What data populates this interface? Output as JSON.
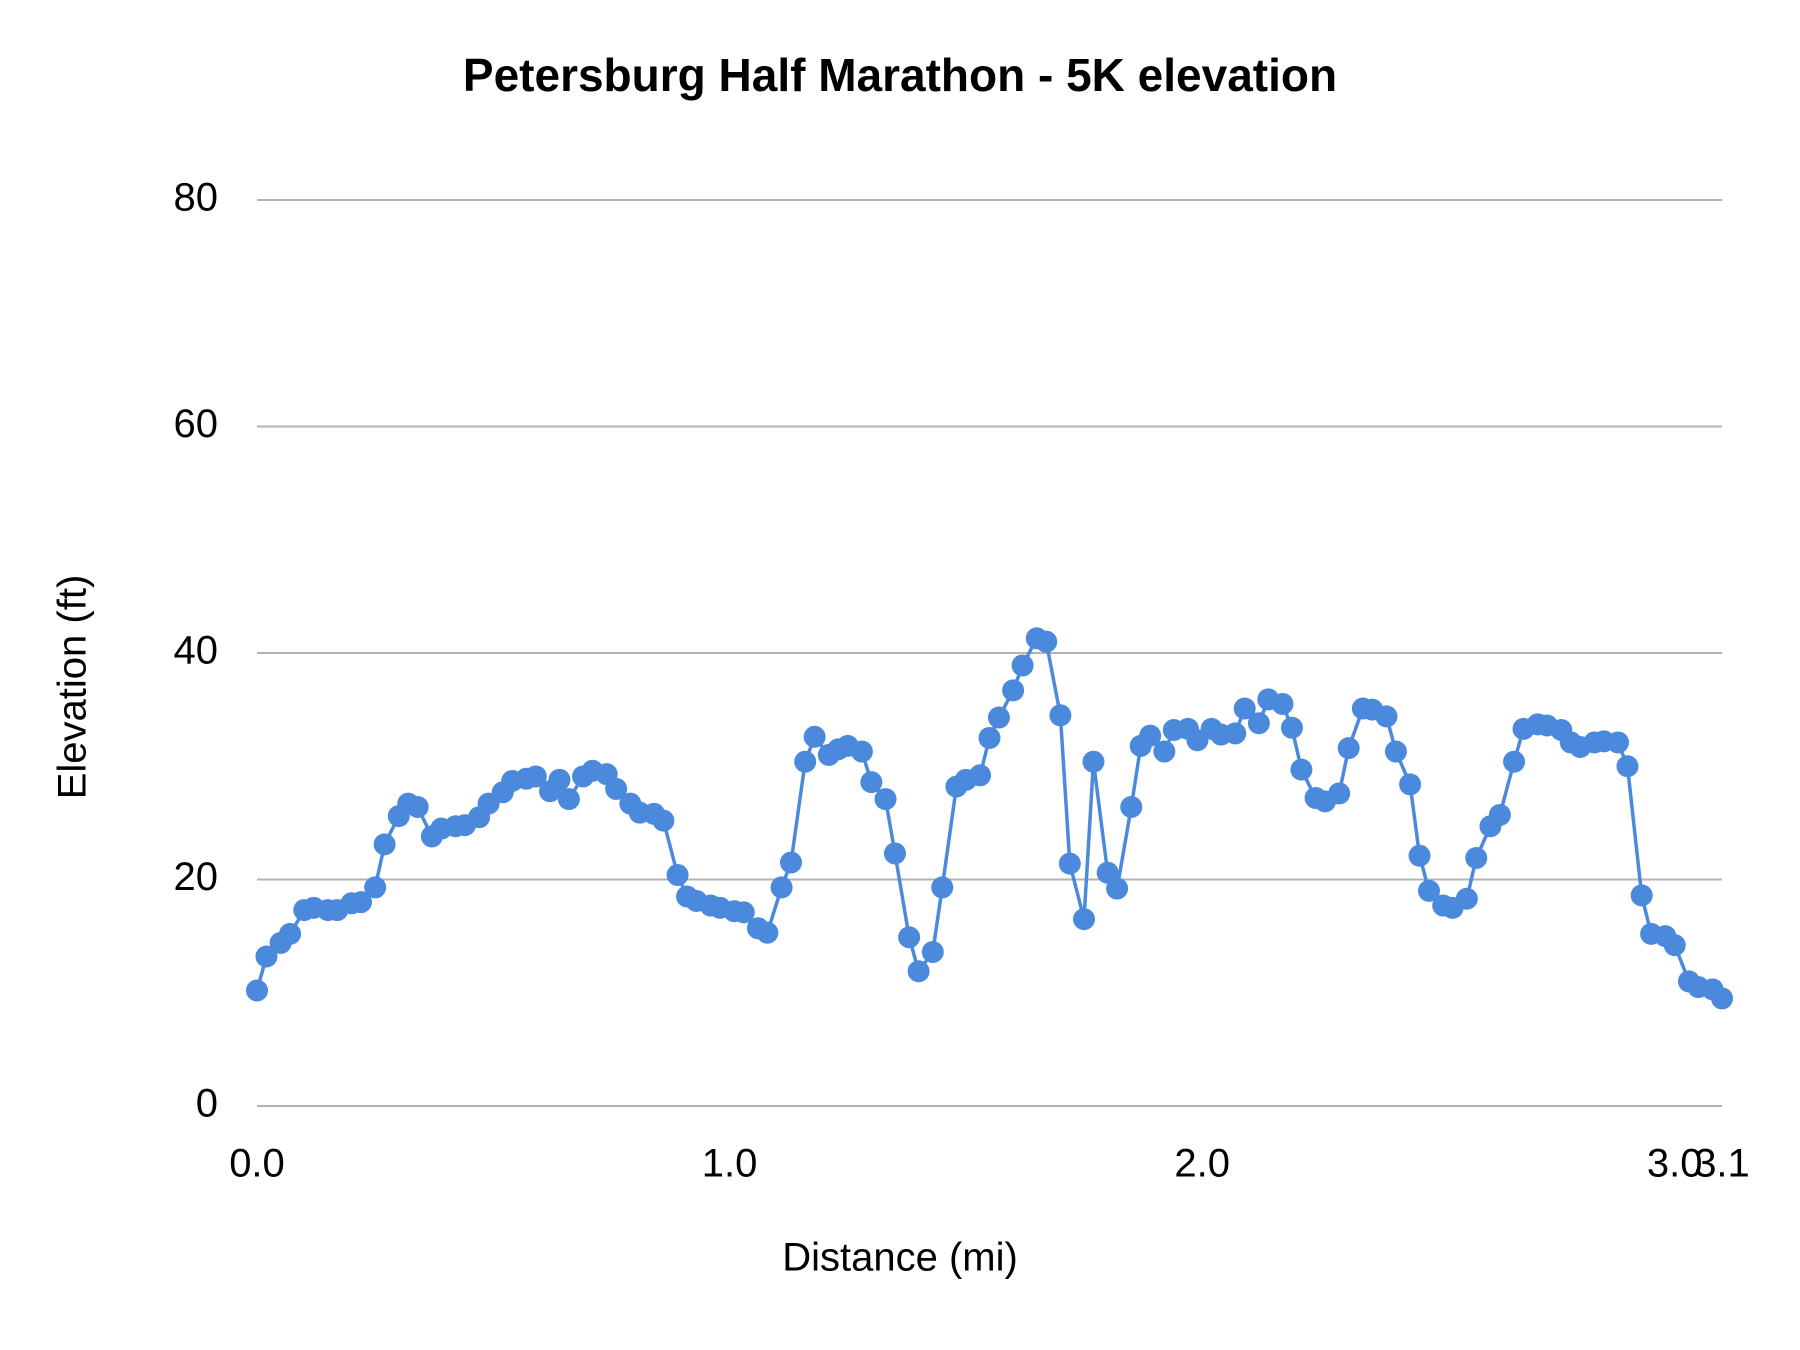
{
  "chart_data": {
    "type": "line",
    "title": "Petersburg Half Marathon  - 5K elevation",
    "x_label": "Distance (mi)",
    "y_label": "Elevation (ft)",
    "color": "#4a89dc",
    "grid": true,
    "xlim": [
      0,
      3.1
    ],
    "ylim": [
      0,
      80
    ],
    "xticks": [
      {
        "value": 0,
        "label": "0.0"
      },
      {
        "value": 1,
        "label": "1.0"
      },
      {
        "value": 2,
        "label": "2.0"
      },
      {
        "value": 3,
        "label": "3.0"
      },
      3.1
    ],
    "yticks": [
      0,
      20,
      40,
      60,
      80
    ],
    "x": [
      0,
      0.02,
      0.05,
      0.07,
      0.1,
      0.12,
      0.15,
      0.17,
      0.2,
      0.22,
      0.25,
      0.27,
      0.3,
      0.32,
      0.34,
      0.37,
      0.39,
      0.42,
      0.44,
      0.47,
      0.49,
      0.52,
      0.54,
      0.57,
      0.59,
      0.62,
      0.64,
      0.66,
      0.69,
      0.71,
      0.74,
      0.76,
      0.79,
      0.81,
      0.84,
      0.86,
      0.89,
      0.91,
      0.93,
      0.96,
      0.98,
      1.01,
      1.03,
      1.06,
      1.08,
      1.11,
      1.13,
      1.16,
      1.18,
      1.21,
      1.23,
      1.25,
      1.28,
      1.3,
      1.33,
      1.35,
      1.38,
      1.4,
      1.43,
      1.45,
      1.48,
      1.5,
      1.53,
      1.55,
      1.57,
      1.6,
      1.62,
      1.65,
      1.67,
      1.7,
      1.72,
      1.75,
      1.77,
      1.8,
      1.82,
      1.85,
      1.87,
      1.89,
      1.92,
      1.94,
      1.97,
      1.99,
      2.02,
      2.04,
      2.07,
      2.09,
      2.12,
      2.14,
      2.17,
      2.19,
      2.21,
      2.24,
      2.26,
      2.29,
      2.31,
      2.34,
      2.36,
      2.39,
      2.41,
      2.44,
      2.46,
      2.48,
      2.51,
      2.53,
      2.56,
      2.58,
      2.61,
      2.63,
      2.66,
      2.68,
      2.71,
      2.73,
      2.76,
      2.78,
      2.8,
      2.83,
      2.85,
      2.88,
      2.9,
      2.93,
      2.95,
      2.98,
      3.0,
      3.03,
      3.05,
      3.08,
      3.1
    ],
    "values": [
      10.2,
      13.2,
      14.4,
      15.2,
      17.3,
      17.5,
      17.3,
      17.3,
      17.9,
      18.0,
      19.3,
      23.1,
      25.6,
      26.7,
      26.4,
      23.8,
      24.5,
      24.7,
      24.8,
      25.5,
      26.7,
      27.7,
      28.7,
      28.9,
      29.1,
      27.8,
      28.8,
      27.1,
      29.1,
      29.6,
      29.3,
      28.0,
      26.7,
      25.9,
      25.8,
      25.2,
      20.4,
      18.5,
      18.1,
      17.7,
      17.5,
      17.2,
      17.1,
      15.7,
      15.3,
      19.3,
      21.5,
      30.4,
      32.6,
      31.0,
      31.5,
      31.8,
      31.3,
      28.6,
      27.1,
      22.3,
      14.9,
      11.9,
      13.6,
      19.3,
      28.2,
      28.8,
      29.2,
      32.5,
      34.3,
      36.7,
      38.9,
      41.3,
      41.0,
      34.5,
      21.4,
      16.5,
      30.4,
      20.6,
      19.2,
      26.4,
      31.8,
      32.7,
      31.3,
      33.2,
      33.3,
      32.3,
      33.3,
      32.8,
      32.9,
      35.1,
      33.8,
      35.9,
      35.5,
      33.4,
      29.7,
      27.2,
      26.9,
      27.6,
      31.6,
      35.1,
      35.0,
      34.4,
      31.3,
      28.4,
      22.1,
      19.0,
      17.7,
      17.5,
      18.3,
      21.9,
      24.7,
      25.7,
      30.4,
      33.3,
      33.7,
      33.6,
      33.2,
      32.1,
      31.7,
      32.1,
      32.2,
      32.1,
      30.0,
      18.6,
      15.2,
      15.0,
      14.2,
      11.0,
      10.5,
      10.3,
      9.5
    ]
  }
}
